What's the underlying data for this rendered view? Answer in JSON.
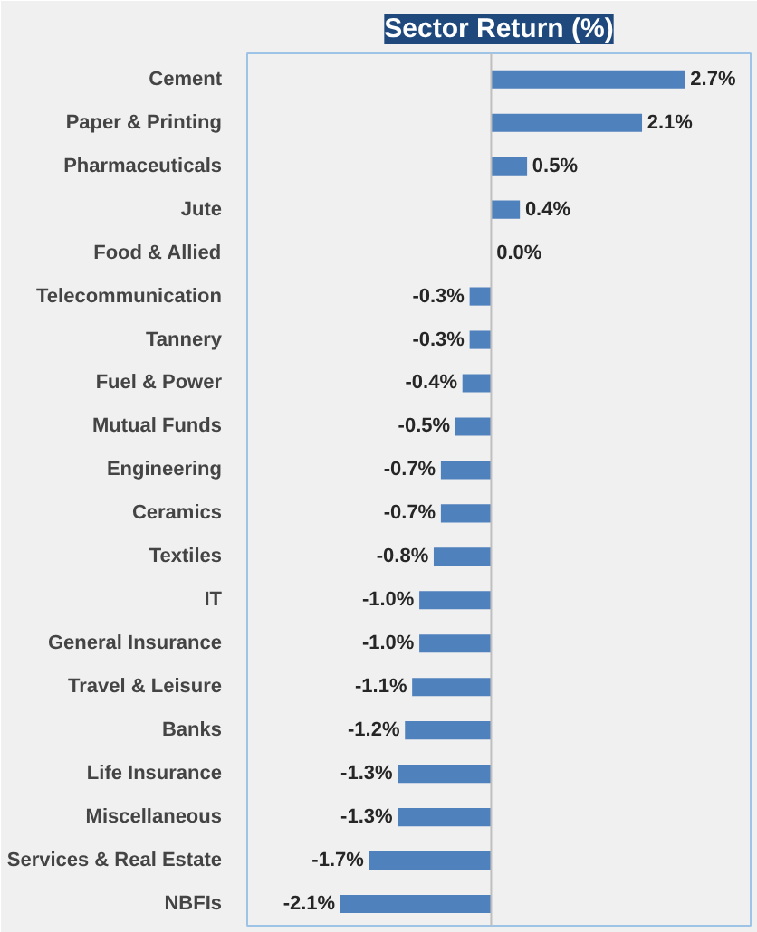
{
  "chart_data": {
    "type": "bar",
    "orientation": "horizontal",
    "title": "Sector Return (%)",
    "categories": [
      "Cement",
      "Paper & Printing",
      "Pharmaceuticals",
      "Jute",
      "Food & Allied",
      "Telecommunication",
      "Tannery",
      "Fuel & Power",
      "Mutual Funds",
      "Engineering",
      "Ceramics",
      "Textiles",
      "IT",
      "General Insurance",
      "Travel & Leisure",
      "Banks",
      "Life Insurance",
      "Miscellaneous",
      "Services & Real Estate",
      "NBFIs"
    ],
    "values": [
      2.7,
      2.1,
      0.5,
      0.4,
      0.0,
      -0.3,
      -0.3,
      -0.4,
      -0.5,
      -0.7,
      -0.7,
      -0.8,
      -1.0,
      -1.0,
      -1.1,
      -1.2,
      -1.3,
      -1.3,
      -1.7,
      -2.1
    ],
    "value_labels": [
      "2.7%",
      "2.1%",
      "0.5%",
      "0.4%",
      "0.0%",
      "-0.3%",
      "-0.3%",
      "-0.4%",
      "-0.5%",
      "-0.7%",
      "-0.7%",
      "-0.8%",
      "-1.0%",
      "-1.0%",
      "-1.1%",
      "-1.2%",
      "-1.3%",
      "-1.3%",
      "-1.7%",
      "-2.1%"
    ],
    "color": "#4f81bd"
  }
}
